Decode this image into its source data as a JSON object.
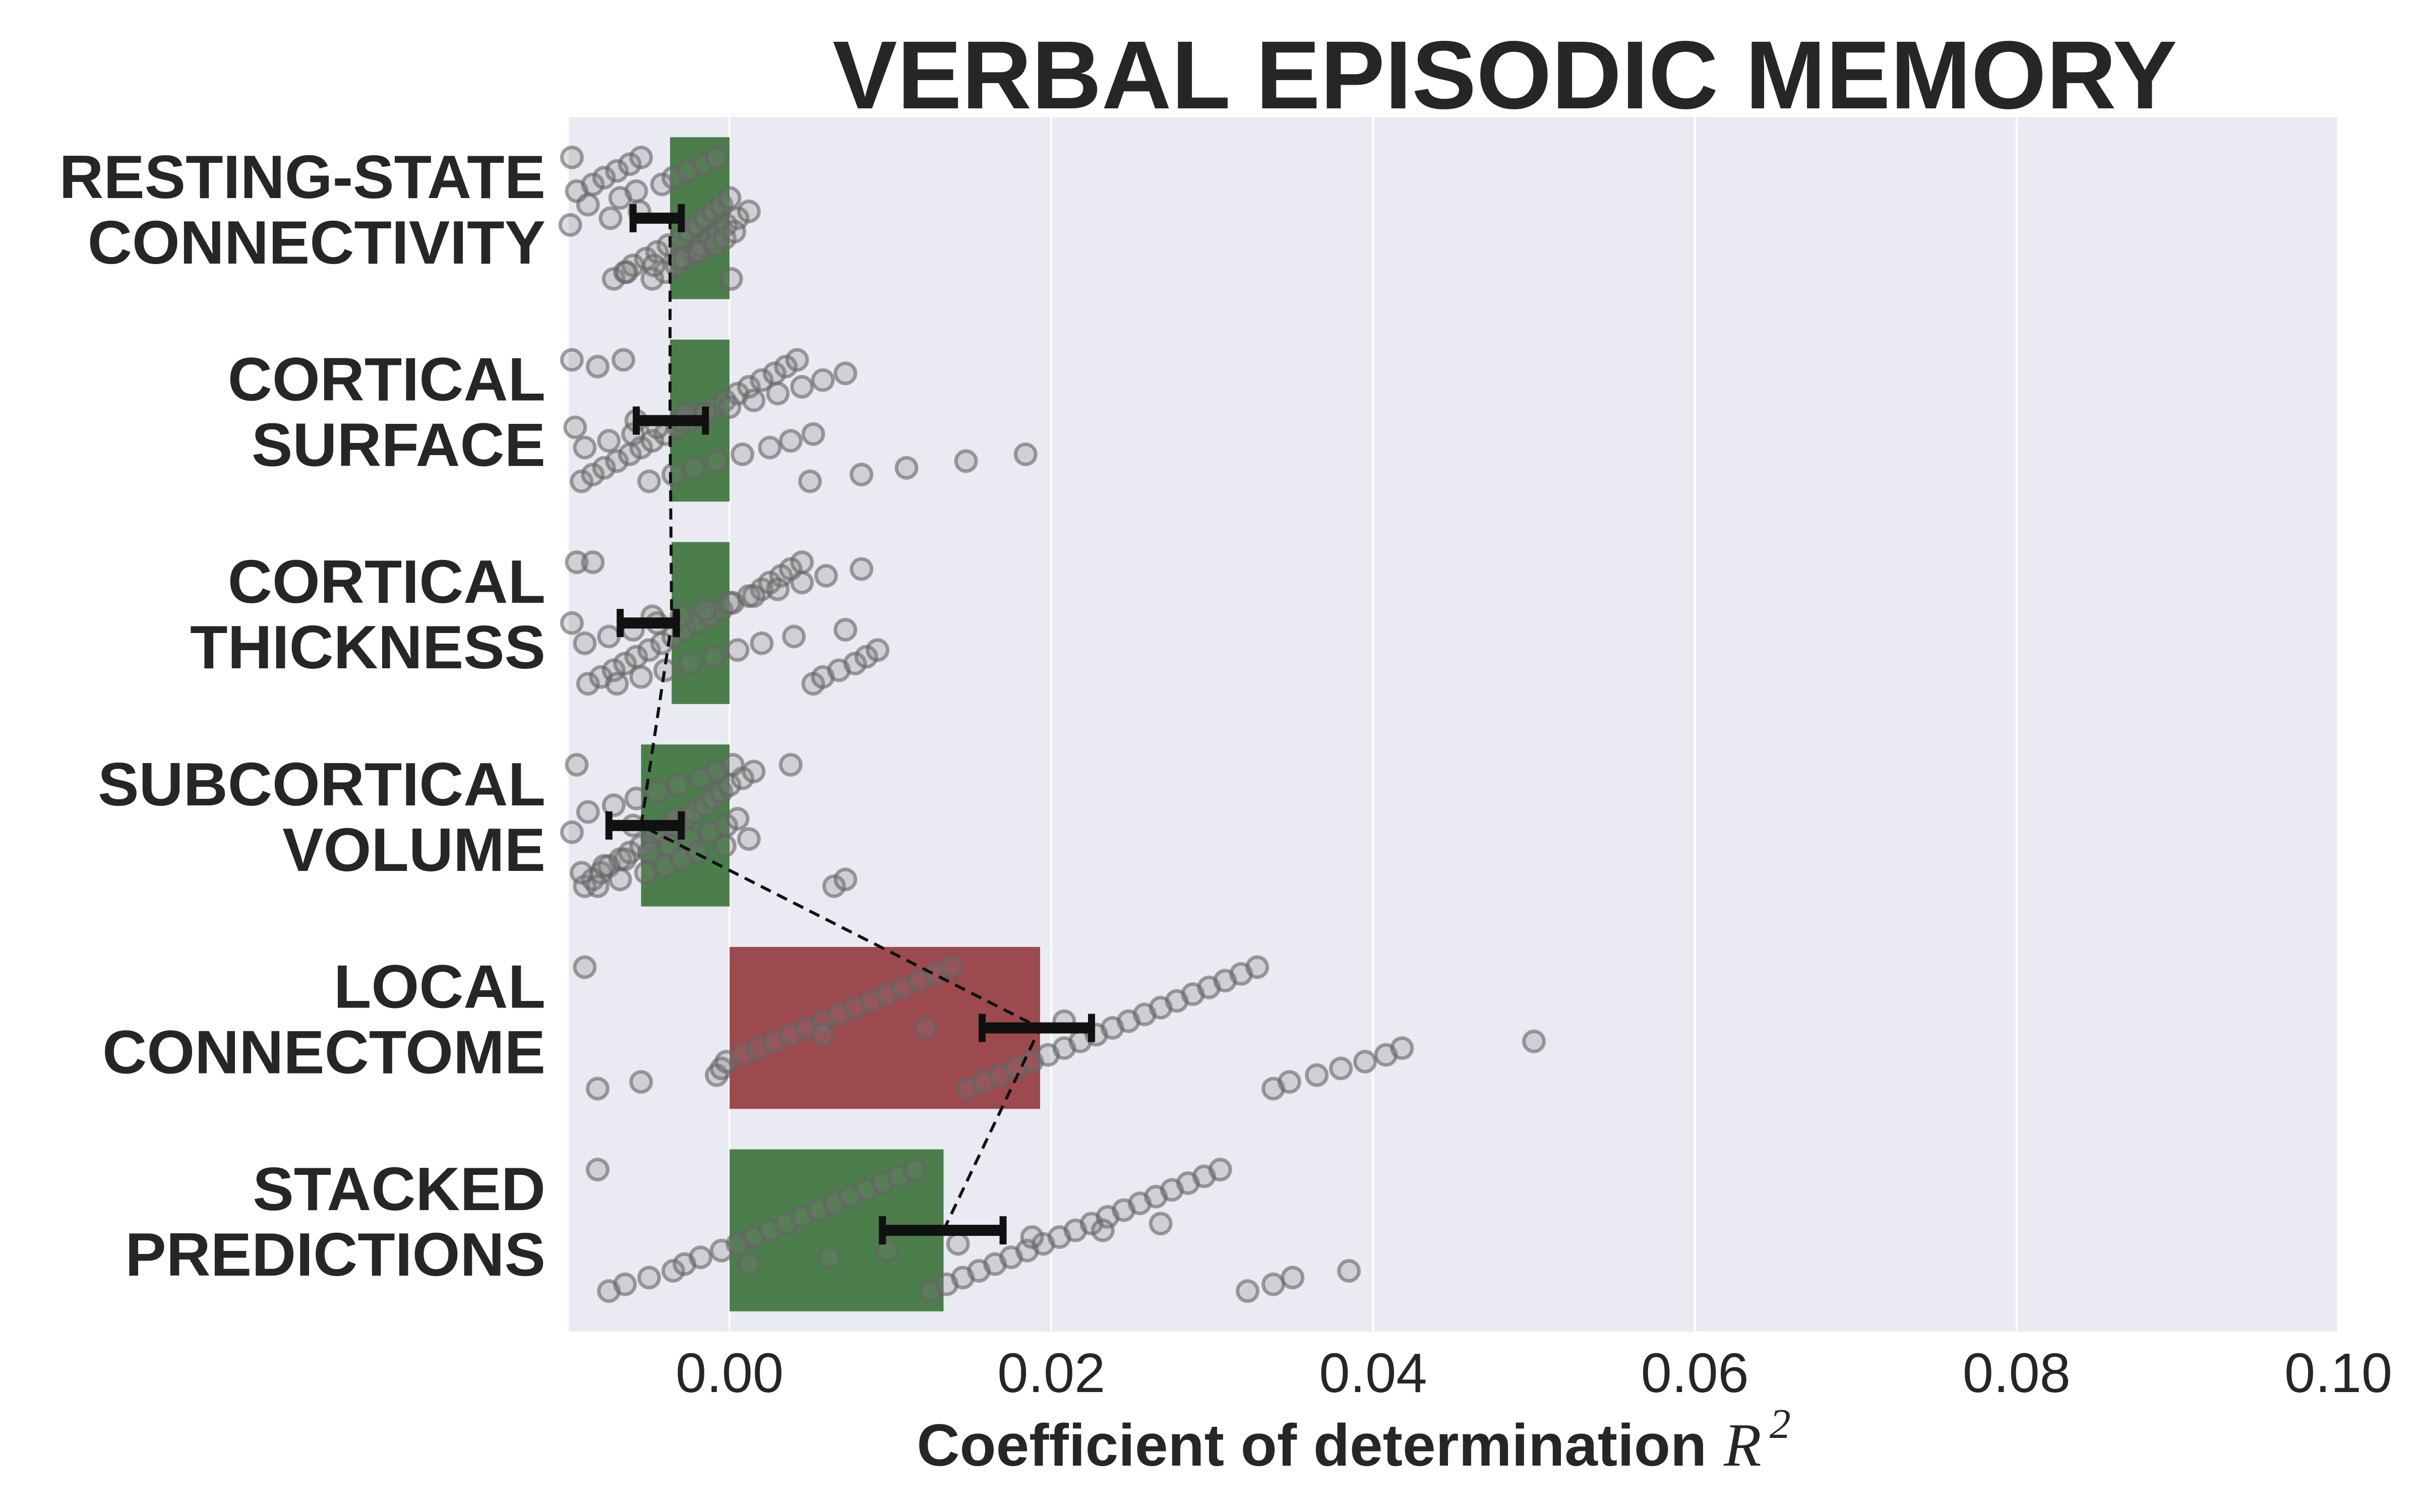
{
  "chart_data": {
    "type": "bar",
    "title": "VERBAL EPISODIC MEMORY",
    "xlabel": "Coefficient of determination",
    "xlabel_symbol": "R",
    "xlabel_superscript": "2",
    "xlim": [
      -0.01,
      0.1
    ],
    "xticks": [
      "0.00",
      "0.02",
      "0.04",
      "0.06",
      "0.08",
      "0.10"
    ],
    "xtick_values": [
      0.0,
      0.02,
      0.04,
      0.06,
      0.08,
      0.1
    ],
    "grid": true,
    "orientation": "horizontal",
    "categories": [
      [
        "RESTING-STATE",
        "CONNECTIVITY"
      ],
      [
        "CORTICAL",
        "SURFACE"
      ],
      [
        "CORTICAL",
        "THICKNESS"
      ],
      [
        "SUBCORTICAL",
        "VOLUME"
      ],
      [
        "LOCAL",
        "CONNECTOME"
      ],
      [
        "STACKED",
        "PREDICTIONS"
      ]
    ],
    "values": [
      -0.0037,
      -0.0037,
      -0.0036,
      -0.0055,
      0.0193,
      0.0133
    ],
    "ci": [
      [
        -0.006,
        -0.003
      ],
      [
        -0.0058,
        -0.0015
      ],
      [
        -0.0068,
        -0.0033
      ],
      [
        -0.0075,
        -0.003
      ],
      [
        0.0157,
        0.0225
      ],
      [
        0.0095,
        0.017
      ]
    ],
    "colors": [
      "#4b7e4b",
      "#4b7e4b",
      "#4b7e4b",
      "#4b7e4b",
      "#9c4a4e",
      "#4b7e4b"
    ],
    "points": [
      [
        -0.0098,
        -0.0072,
        -0.0065,
        -0.006,
        -0.0052,
        -0.0045,
        -0.0038,
        -0.003,
        -0.0025,
        -0.002,
        -0.0015,
        -0.001,
        -0.0005,
        0.0,
        -0.0095,
        -0.0085,
        -0.0078,
        -0.007,
        -0.0062,
        -0.0055,
        -0.0048,
        -0.004,
        -0.0033,
        -0.0028,
        -0.0022,
        -0.0018,
        -0.0012,
        -0.0007,
        -0.0002,
        0.0005,
        0.0012,
        -0.0088,
        -0.0068,
        -0.0058,
        -0.0042,
        -0.0035,
        -0.0026,
        -0.0016,
        -0.0008,
        0.0001,
        -0.0064,
        -0.0047,
        -0.0031,
        -0.0019,
        -0.0009,
        -0.0003,
        0.0003,
        -0.0099,
        -0.0074,
        -0.0056
      ],
      [
        -0.0098,
        -0.0092,
        -0.0085,
        -0.0078,
        -0.007,
        -0.0062,
        -0.0055,
        -0.0048,
        -0.004,
        -0.0032,
        -0.0025,
        -0.0018,
        -0.001,
        -0.0003,
        0.0005,
        0.0012,
        0.002,
        0.0028,
        0.0035,
        0.0042,
        0.005,
        0.0082,
        0.011,
        0.0147,
        0.0184,
        -0.009,
        -0.0075,
        -0.006,
        -0.0045,
        -0.003,
        -0.0015,
        0.0,
        0.0015,
        0.003,
        0.0045,
        0.0058,
        0.0072,
        -0.0082,
        -0.0066,
        -0.005,
        -0.0035,
        -0.0022,
        -0.0008,
        0.0008,
        0.0025,
        0.0038,
        0.0052,
        -0.0096,
        -0.0058,
        -0.0028
      ],
      [
        -0.0095,
        -0.0088,
        -0.008,
        -0.0072,
        -0.0065,
        -0.0058,
        -0.005,
        -0.0042,
        -0.0035,
        -0.0028,
        -0.002,
        -0.0012,
        -0.0005,
        0.0002,
        0.0012,
        0.002,
        0.0025,
        0.0032,
        0.0038,
        0.0045,
        0.0052,
        0.0058,
        0.0068,
        0.0078,
        0.0085,
        0.0092,
        -0.009,
        -0.0075,
        -0.006,
        -0.0045,
        -0.003,
        -0.0015,
        0.0,
        0.0015,
        0.003,
        0.0045,
        0.006,
        0.0082,
        -0.0085,
        -0.007,
        -0.0055,
        -0.004,
        -0.0025,
        -0.001,
        0.0005,
        0.002,
        0.004,
        0.0072,
        -0.0098,
        -0.0048
      ],
      [
        -0.0095,
        -0.009,
        -0.0085,
        -0.008,
        -0.0075,
        -0.0068,
        -0.0062,
        -0.0055,
        -0.0048,
        -0.0042,
        -0.0035,
        -0.0028,
        -0.0022,
        -0.0015,
        -0.001,
        -0.0005,
        0.0,
        0.0008,
        0.0015,
        0.0038,
        0.0065,
        0.0072,
        -0.0092,
        -0.0078,
        -0.0065,
        -0.005,
        -0.0038,
        -0.0025,
        -0.0012,
        -0.0002,
        0.0005,
        -0.0088,
        -0.0072,
        -0.0058,
        -0.0045,
        -0.0032,
        -0.0018,
        -0.0008,
        0.0002,
        -0.0082,
        -0.0068,
        -0.0052,
        -0.004,
        -0.003,
        -0.002,
        -0.0003,
        0.0012,
        -0.0098,
        -0.006,
        -0.0034
      ],
      [
        -0.009,
        -0.0082,
        -0.0055,
        -0.0008,
        -0.0005,
        -0.0002,
        0.0008,
        0.0018,
        0.0028,
        0.0038,
        0.0048,
        0.0058,
        0.0068,
        0.0078,
        0.0088,
        0.0098,
        0.0108,
        0.0118,
        0.0128,
        0.0138,
        0.0148,
        0.0158,
        0.0168,
        0.0178,
        0.0188,
        0.0198,
        0.0208,
        0.0218,
        0.0228,
        0.0238,
        0.0248,
        0.0258,
        0.0268,
        0.0278,
        0.0288,
        0.0298,
        0.0308,
        0.0318,
        0.0328,
        0.0338,
        0.0348,
        0.0365,
        0.038,
        0.0395,
        0.0408,
        0.0418,
        0.05,
        0.0058,
        0.0122,
        0.0208
      ],
      [
        -0.0082,
        -0.0075,
        -0.0065,
        -0.005,
        -0.0035,
        -0.0028,
        -0.0018,
        -0.0005,
        0.0005,
        0.0015,
        0.0025,
        0.0035,
        0.0045,
        0.0055,
        0.0065,
        0.0075,
        0.0085,
        0.0095,
        0.0105,
        0.0115,
        0.0125,
        0.0135,
        0.0145,
        0.0155,
        0.0165,
        0.0175,
        0.0185,
        0.0195,
        0.0205,
        0.0215,
        0.0225,
        0.0235,
        0.0245,
        0.0255,
        0.0265,
        0.0275,
        0.0285,
        0.0295,
        0.0305,
        0.0322,
        0.0338,
        0.035,
        0.0385,
        0.0012,
        0.0062,
        0.0098,
        0.0142,
        0.0188,
        0.0232,
        0.0268
      ]
    ]
  }
}
